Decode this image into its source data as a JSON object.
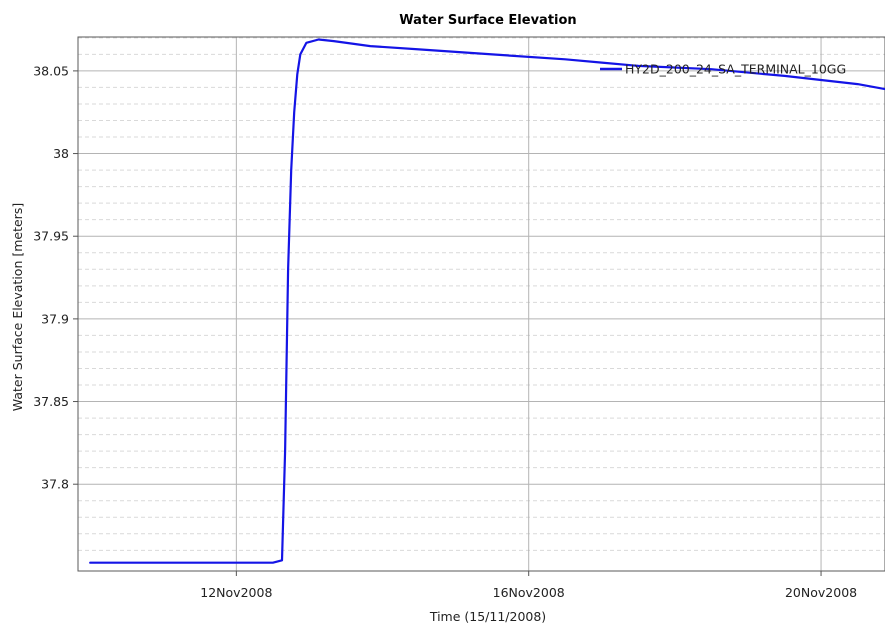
{
  "chart_data": {
    "type": "line",
    "title": "Water Surface Elevation",
    "xlabel": "Time (15/11/2008)",
    "ylabel": "Water Surface Elevation [meters]",
    "x_ticks": [
      "12Nov2008",
      "16Nov2008",
      "20Nov2008"
    ],
    "y_ticks": [
      "37.8",
      "37.85",
      "37.9",
      "37.95",
      "38",
      "38.05"
    ],
    "xlim": [
      "2008-11-09T20:00",
      "2008-11-20T21:00"
    ],
    "ylim": [
      37.7475,
      38.0705
    ],
    "grid": true,
    "legend_position": "top-right",
    "series": [
      {
        "name": "HY2D_200_24_SA_TERMINAL_10GG",
        "color": "#1414e6",
        "points": [
          [
            "2008-11-10T00:00",
            37.7525
          ],
          [
            "2008-11-12T12:00",
            37.7525
          ],
          [
            "2008-11-12T15:00",
            37.754
          ],
          [
            "2008-11-12T16:00",
            37.82
          ],
          [
            "2008-11-12T17:00",
            37.93
          ],
          [
            "2008-11-12T18:00",
            37.99
          ],
          [
            "2008-11-12T19:00",
            38.025
          ],
          [
            "2008-11-12T20:00",
            38.048
          ],
          [
            "2008-11-12T21:00",
            38.06
          ],
          [
            "2008-11-12T23:00",
            38.067
          ],
          [
            "2008-11-13T03:00",
            38.069
          ],
          [
            "2008-11-13T08:00",
            38.068
          ],
          [
            "2008-11-13T20:00",
            38.065
          ],
          [
            "2008-11-14T12:00",
            38.063
          ],
          [
            "2008-11-15T12:00",
            38.06
          ],
          [
            "2008-11-16T12:00",
            38.057
          ],
          [
            "2008-11-17T00:00",
            38.055
          ],
          [
            "2008-11-17T12:00",
            38.053
          ],
          [
            "2008-11-18T12:00",
            38.051
          ],
          [
            "2008-11-19T12:00",
            38.047
          ],
          [
            "2008-11-20T12:00",
            38.042
          ],
          [
            "2008-11-20T21:00",
            38.039
          ]
        ]
      }
    ]
  }
}
